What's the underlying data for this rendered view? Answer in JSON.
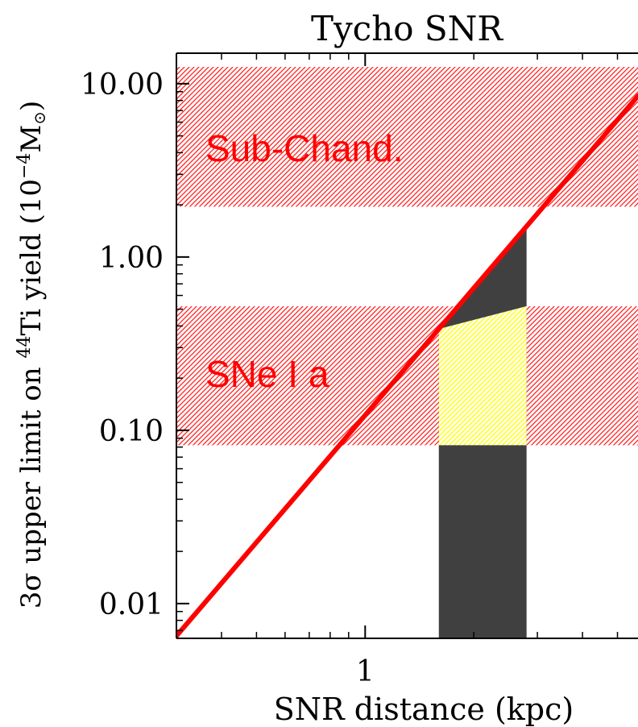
{
  "chart_data": {
    "type": "line",
    "title": "Tycho SNR",
    "xlabel": "SNR distance (kpc)",
    "ylabel_parts": {
      "prefix": "3σ upper limit on ",
      "isotope_mass": "44",
      "isotope_name": "Ti yield (10",
      "exponent": "−4",
      "unit": "M",
      "unit_sub": "⊙",
      "suffix": ")"
    },
    "x_scale": "log",
    "y_scale": "log",
    "xlim": [
      0.3,
      5.7
    ],
    "ylim": [
      0.0063,
      15.0
    ],
    "x_tick_labels": [
      {
        "value": 1,
        "label": "1"
      }
    ],
    "x_minor_ticks": [
      0.3,
      0.4,
      0.5,
      0.6,
      0.7,
      0.8,
      0.9,
      2,
      3,
      4,
      5
    ],
    "y_tick_labels": [
      {
        "value": 0.01,
        "label": "0.01"
      },
      {
        "value": 0.1,
        "label": "0.10"
      },
      {
        "value": 1.0,
        "label": "1.00"
      },
      {
        "value": 10.0,
        "label": "10.00"
      }
    ],
    "y_minor_ticks": [
      0.007,
      0.008,
      0.009,
      0.02,
      0.03,
      0.04,
      0.05,
      0.06,
      0.07,
      0.08,
      0.09,
      0.2,
      0.3,
      0.4,
      0.5,
      0.6,
      0.7,
      0.8,
      0.9,
      2,
      3,
      4,
      5,
      6,
      7,
      8,
      9
    ],
    "bands": [
      {
        "label": "Sub-Chand.",
        "y_min": 1.95,
        "y_max": 12.5,
        "color": "#ff2020"
      },
      {
        "label": "SNe I a",
        "y_min": 0.082,
        "y_max": 0.52,
        "color": "#ff2020"
      }
    ],
    "distance_range": {
      "x_min": 1.6,
      "x_max": 2.8,
      "color": "#404040"
    },
    "overlap_color": "#ffff20",
    "series": [
      {
        "x": [
          0.3,
          5.7
        ],
        "y": [
          0.0065,
          8.5
        ],
        "color": "#ff0000"
      }
    ],
    "colors": {
      "axis": "#000000",
      "band_hatch": "#ff2020",
      "band_label": "#ff0000",
      "line": "#ff0000",
      "distance_range": "#404040",
      "overlap": "#ffff20"
    }
  }
}
